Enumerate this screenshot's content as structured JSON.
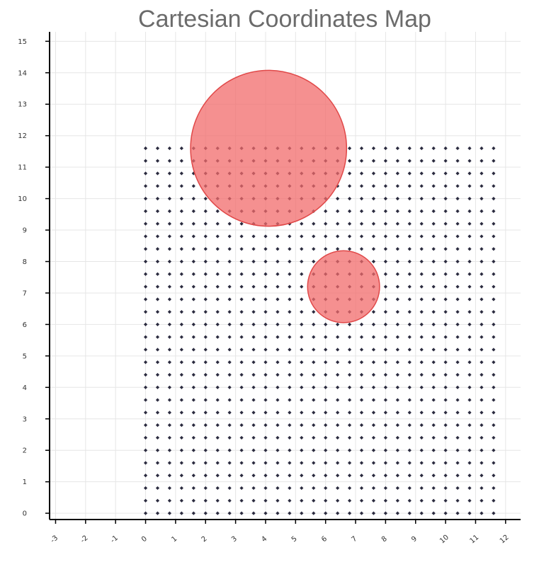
{
  "chart_data": {
    "type": "scatter",
    "title": "Cartesian Coordinates Map",
    "xlabel": "",
    "ylabel": "",
    "xlim": [
      -3.2,
      12.5
    ],
    "ylim": [
      -0.2,
      15.3
    ],
    "x_ticks": [
      -3,
      -2,
      -1,
      0,
      1,
      2,
      3,
      4,
      5,
      6,
      7,
      8,
      9,
      10,
      11,
      12
    ],
    "x_tick_labels": [
      "-3",
      "-2",
      "-1",
      "0",
      "1",
      "2",
      "3",
      "4",
      "5",
      "6",
      "7",
      "8",
      "9",
      "10",
      "11",
      "12"
    ],
    "y_ticks": [
      0,
      1,
      2,
      3,
      4,
      5,
      6,
      7,
      8,
      9,
      10,
      11,
      12,
      13,
      14,
      15
    ],
    "y_tick_labels": [
      "0",
      "1",
      "2",
      "3",
      "4",
      "5",
      "6",
      "7",
      "8",
      "9",
      "10",
      "11",
      "12",
      "13",
      "14",
      "15"
    ],
    "grid": true,
    "points": {
      "x_start": 0,
      "x_end": 11.6,
      "x_step": 0.4,
      "y_start": 0,
      "y_end": 11.6,
      "y_step": 0.4,
      "color": "#2b2b3f"
    },
    "circles": [
      {
        "cx": 4.1,
        "cy": 11.6,
        "r": 2.6,
        "fill": "#f26b6b",
        "stroke": "#e04848",
        "opacity": 0.75
      },
      {
        "cx": 6.6,
        "cy": 7.2,
        "r": 1.2,
        "fill": "#f26b6b",
        "stroke": "#e04848",
        "opacity": 0.75
      }
    ]
  }
}
